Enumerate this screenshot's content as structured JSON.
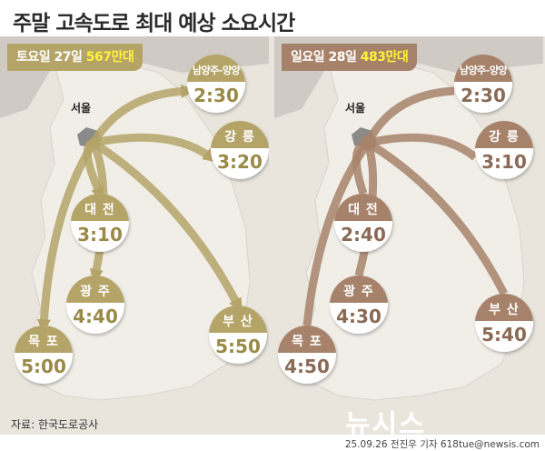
{
  "title": "주말 고속도로 최대 예상 소요시간",
  "colors": {
    "saturday": "#b5a468",
    "sunday": "#a7826a",
    "highlight": "#fff23a"
  },
  "panels": [
    {
      "day_label": "토요일 27일",
      "traffic": "567만대",
      "origin": "서울",
      "routes": [
        {
          "name": "남양주-양양",
          "time": "2:30"
        },
        {
          "name": "강 릉",
          "time": "3:20"
        },
        {
          "name": "대 전",
          "time": "3:10"
        },
        {
          "name": "광 주",
          "time": "4:40"
        },
        {
          "name": "목 포",
          "time": "5:00"
        },
        {
          "name": "부 산",
          "time": "5:50"
        }
      ]
    },
    {
      "day_label": "일요일 28일",
      "traffic": "483만대",
      "origin": "서울",
      "routes": [
        {
          "name": "남양주-양양",
          "time": "2:30"
        },
        {
          "name": "강 릉",
          "time": "3:10"
        },
        {
          "name": "대 전",
          "time": "2:40"
        },
        {
          "name": "광 주",
          "time": "4:30"
        },
        {
          "name": "목 포",
          "time": "4:50"
        },
        {
          "name": "부 산",
          "time": "5:40"
        }
      ]
    }
  ],
  "source": "자료: 한국도로공사",
  "logo": "뉴시스",
  "credit": "25.09.26 전진우 기자 618tue@newsis.com"
}
